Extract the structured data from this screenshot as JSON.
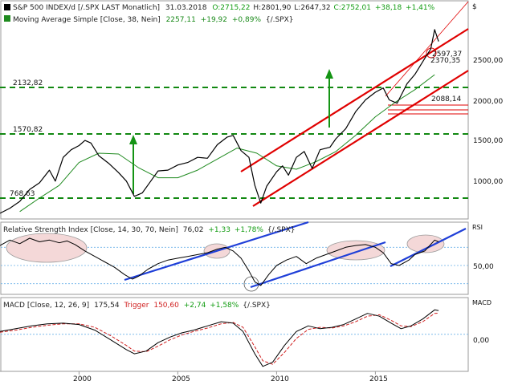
{
  "main_panel": {
    "title_line": "S&P 500 INDEX/d [/.SPX LAST Monatlich]",
    "ohlc": {
      "date": "31.03.2018",
      "open": "O:2715,22",
      "high": "H:2801,90",
      "low": "L:2647,32",
      "close": "C:2752,01",
      "change": "+38,18",
      "change_pct": "+1,41%"
    },
    "ma_line": {
      "label": "Moving Average Simple [Close, 38, Nein]",
      "value": "2257,11",
      "change": "+19,92",
      "change_pct": "+0,89%",
      "ref": "{/.SPX}"
    },
    "y_ticks": [
      "2500,00",
      "2000,00",
      "1500,00",
      "1000,00"
    ],
    "annotations": {
      "level_high": "2132,82",
      "level_mid": "1570,82",
      "level_low": "768,63",
      "channel_val_1": "2597,37",
      "channel_val_2": "2370,35",
      "support_val": "2088,14"
    },
    "right_marker": "$"
  },
  "rsi_panel": {
    "label": "Relative Strength Index [Close, 14, 30, 70, Nein]",
    "value": "76,02",
    "change": "+1,33",
    "change_pct": "+1,78%",
    "ref": "{/.SPX}",
    "axis_label": "RSI",
    "tick": "50,00"
  },
  "macd_panel": {
    "label": "MACD [Close, 12, 26, 9]",
    "value": "175,54",
    "trigger_label": "Trigger",
    "trigger_value": "150,60",
    "change": "+2,74",
    "change_pct": "+1,58%",
    "ref": "{/.SPX}",
    "axis_label": "MACD",
    "tick": "0,00"
  },
  "x_axis": {
    "labels": [
      "2000",
      "2005",
      "2010",
      "2015"
    ]
  },
  "colors": {
    "price": "#000000",
    "ma": "#1f8a1f",
    "channel": "#e00000",
    "level_line": "#118811",
    "arrow": "#149414",
    "trendline": "#1f3fd8",
    "ellipse_fill": "#f4d8d8",
    "trigger": "#d02020",
    "grid": "#6ab0e8",
    "ohlc_green": "#129c12",
    "ma_value_green": "#1a8a1a"
  },
  "chart_data": [
    {
      "type": "line",
      "title": "S&P 500 INDEX/d [/.SPX LAST Monatlich]",
      "series": [
        {
          "name": "S&P 500 INDEX",
          "x": [
            1996.0,
            1996.5,
            1997.0,
            1997.5,
            1998.0,
            1998.5,
            1998.8,
            1999.2,
            1999.6,
            2000.0,
            2000.3,
            2000.6,
            2001.0,
            2001.5,
            2002.0,
            2002.4,
            2002.8,
            2003.2,
            2003.6,
            2004.0,
            2004.5,
            2005.0,
            2005.5,
            2006.0,
            2006.5,
            2007.0,
            2007.5,
            2007.8,
            2008.2,
            2008.6,
            2008.9,
            2009.2,
            2009.5,
            2010.0,
            2010.3,
            2010.6,
            2011.0,
            2011.4,
            2011.8,
            2012.2,
            2012.7,
            2013.0,
            2013.5,
            2014.0,
            2014.5,
            2015.0,
            2015.4,
            2015.7,
            2016.1,
            2016.6,
            2017.0,
            2017.5,
            2017.8,
            2018.0,
            2018.2
          ],
          "values": [
            620,
            680,
            760,
            900,
            980,
            1130,
            1000,
            1280,
            1370,
            1420,
            1480,
            1450,
            1300,
            1210,
            1100,
            1000,
            820,
            860,
            990,
            1120,
            1130,
            1190,
            1220,
            1280,
            1270,
            1430,
            1520,
            1540,
            1360,
            1280,
            950,
            740,
            940,
            1110,
            1180,
            1070,
            1280,
            1350,
            1150,
            1370,
            1400,
            1500,
            1620,
            1820,
            1960,
            2050,
            2100,
            1960,
            1920,
            2150,
            2260,
            2450,
            2560,
            2790,
            2650
          ]
        },
        {
          "name": "Moving Average Simple [Close, 38, Nein]",
          "x": [
            1997,
            1998,
            1999,
            2000,
            2001,
            2002,
            2003,
            2004,
            2005,
            2006,
            2007,
            2008,
            2009,
            2010,
            2011,
            2012,
            2013,
            2014,
            2015,
            2016,
            2017,
            2018
          ],
          "values": [
            640,
            800,
            950,
            1220,
            1330,
            1320,
            1160,
            1040,
            1040,
            1130,
            1260,
            1390,
            1330,
            1180,
            1140,
            1230,
            1350,
            1540,
            1760,
            1930,
            2080,
            2257
          ]
        }
      ],
      "ylim": [
        600,
        2950
      ],
      "y_ticks": [
        1000,
        1500,
        2000,
        2500
      ],
      "xlim": [
        1996,
        2019
      ],
      "horizontal_levels": [
        2132.82,
        1570.82,
        768.63
      ],
      "support_levels": [
        2088.14,
        1850,
        1810
      ]
    },
    {
      "type": "line",
      "title": "Relative Strength Index [Close, 14, 30, 70, Nein]",
      "series": [
        {
          "name": "Relative Strength Index",
          "x": [
            1996.0,
            1996.5,
            1997.0,
            1997.5,
            1998.0,
            1998.5,
            1999.0,
            1999.4,
            1999.8,
            2000.3,
            2000.8,
            2001.3,
            2001.8,
            2002.3,
            2002.7,
            2003.0,
            2003.5,
            2004.0,
            2004.5,
            2005.0,
            2005.5,
            2006.0,
            2006.5,
            2007.0,
            2007.4,
            2007.8,
            2008.2,
            2008.6,
            2008.9,
            2009.2,
            2009.6,
            2010.0,
            2010.5,
            2011.0,
            2011.5,
            2012.0,
            2012.5,
            2013.0,
            2013.5,
            2014.0,
            2014.5,
            2015.0,
            2015.4,
            2015.8,
            2016.2,
            2016.7,
            2017.0,
            2017.5,
            2018.0,
            2018.2
          ],
          "values": [
            72,
            78,
            74,
            80,
            76,
            78,
            75,
            77,
            73,
            66,
            60,
            54,
            48,
            40,
            35,
            38,
            46,
            52,
            56,
            58,
            60,
            62,
            64,
            68,
            70,
            66,
            58,
            44,
            32,
            28,
            40,
            50,
            56,
            60,
            52,
            58,
            62,
            66,
            70,
            72,
            73,
            70,
            64,
            52,
            50,
            56,
            62,
            66,
            78,
            76
          ]
        }
      ],
      "ylim": [
        20,
        95
      ],
      "reference_lines": [
        70,
        50,
        30
      ],
      "y_ticks": [
        50
      ]
    },
    {
      "type": "line",
      "title": "MACD [Close, 12, 26, 9]",
      "series": [
        {
          "name": "MACD",
          "x": [
            1996.0,
            1996.8,
            1997.6,
            1998.4,
            1999.2,
            2000.0,
            2000.8,
            2001.6,
            2002.4,
            2002.8,
            2003.4,
            2004.0,
            2004.6,
            2005.2,
            2005.8,
            2006.5,
            2007.2,
            2007.8,
            2008.3,
            2008.9,
            2009.3,
            2009.8,
            2010.4,
            2011.0,
            2011.6,
            2012.2,
            2012.8,
            2013.4,
            2014.0,
            2014.6,
            2015.2,
            2015.8,
            2016.3,
            2016.8,
            2017.4,
            2018.0,
            2018.2
          ],
          "values": [
            20,
            40,
            60,
            75,
            80,
            70,
            30,
            -40,
            -110,
            -140,
            -120,
            -60,
            -20,
            10,
            30,
            60,
            90,
            80,
            20,
            -140,
            -230,
            -200,
            -80,
            20,
            60,
            40,
            50,
            70,
            110,
            150,
            130,
            80,
            40,
            60,
            110,
            175,
            170
          ]
        },
        {
          "name": "Trigger",
          "x": [
            1996.0,
            1996.8,
            1997.6,
            1998.4,
            1999.2,
            2000.0,
            2000.8,
            2001.6,
            2002.4,
            2002.8,
            2003.4,
            2004.0,
            2004.6,
            2005.2,
            2005.8,
            2006.5,
            2007.2,
            2007.8,
            2008.3,
            2008.9,
            2009.3,
            2009.8,
            2010.4,
            2011.0,
            2011.6,
            2012.2,
            2012.8,
            2013.4,
            2014.0,
            2014.6,
            2015.2,
            2015.8,
            2016.3,
            2016.8,
            2017.4,
            2018.0,
            2018.2
          ],
          "values": [
            15,
            30,
            50,
            65,
            75,
            75,
            50,
            -10,
            -80,
            -120,
            -125,
            -85,
            -40,
            -5,
            20,
            45,
            75,
            85,
            50,
            -90,
            -190,
            -215,
            -130,
            -30,
            35,
            50,
            45,
            60,
            90,
            130,
            140,
            100,
            60,
            55,
            90,
            150,
            151
          ]
        }
      ],
      "ylim": [
        -260,
        200
      ],
      "y_ticks": [
        0
      ]
    }
  ]
}
